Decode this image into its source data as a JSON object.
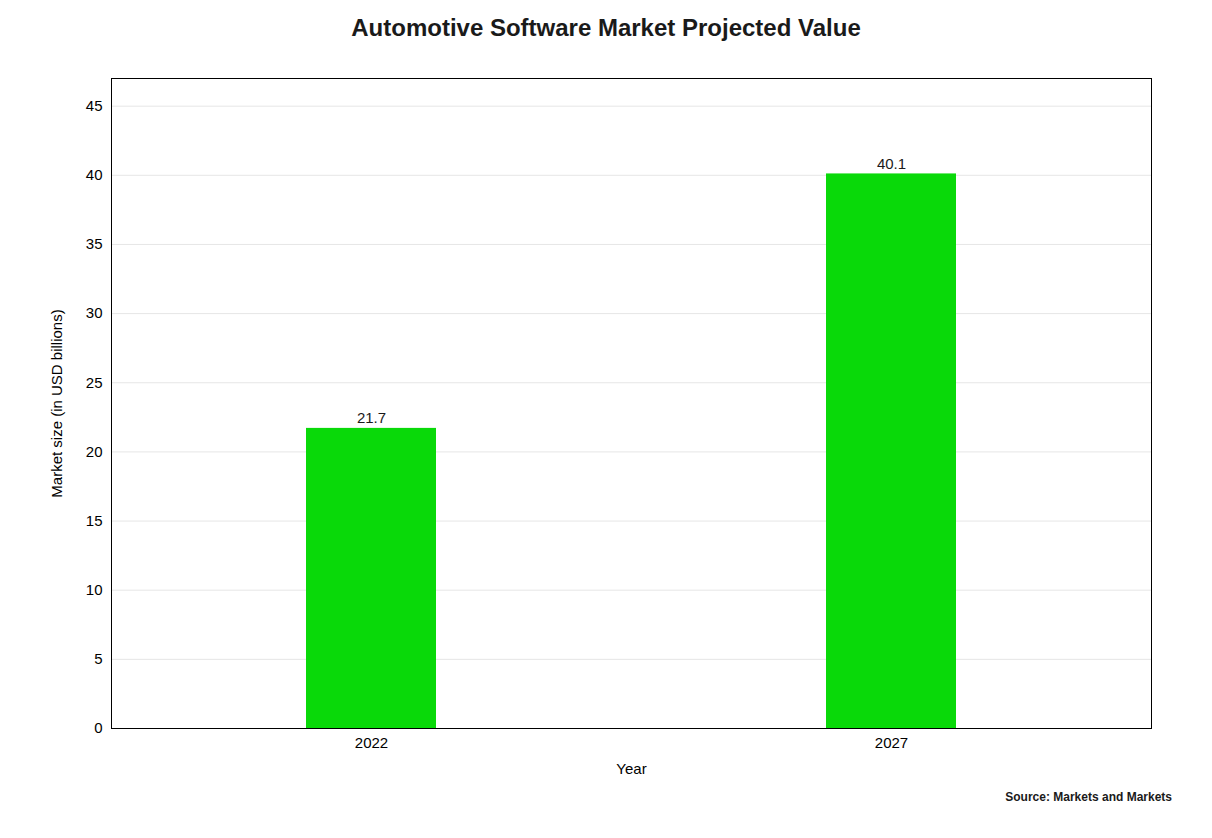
{
  "chart_data": {
    "type": "bar",
    "title": "Automotive Software Market Projected Value",
    "xlabel": "Year",
    "ylabel": "Market size (in USD billions)",
    "categories": [
      "2022",
      "2027"
    ],
    "values": [
      21.7,
      40.1
    ],
    "color": "#09d909",
    "ylim": [
      0,
      47
    ],
    "yticks": [
      0,
      5,
      10,
      15,
      20,
      25,
      30,
      35,
      40,
      45
    ],
    "grid": true,
    "data_labels": true,
    "annotations": [
      "Source: Markets and Markets"
    ]
  }
}
